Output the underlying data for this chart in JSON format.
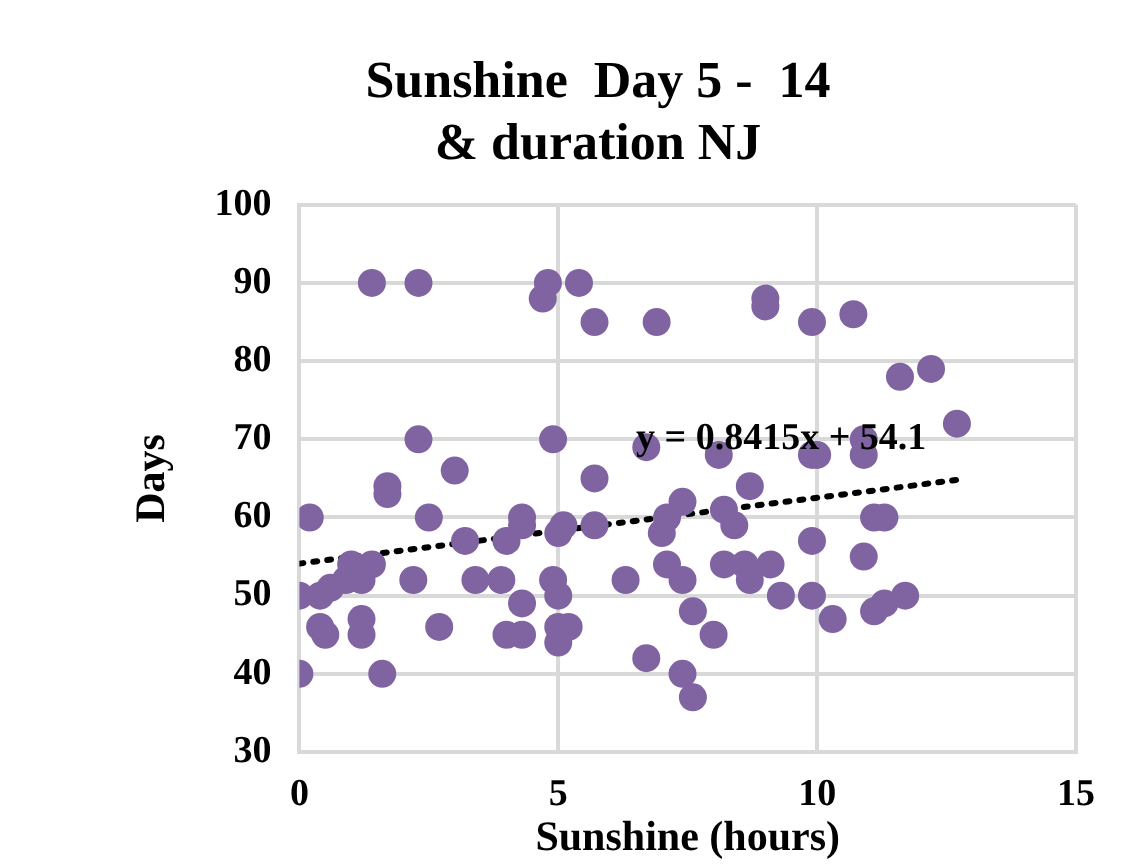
{
  "chart_data": {
    "type": "scatter",
    "title": "Sunshine  Day 5 -  14\n& duration NJ",
    "xlabel": "Sunshine (hours)",
    "ylabel": "Days",
    "xlim": [
      0,
      15
    ],
    "xticks": [
      0,
      5,
      10,
      15
    ],
    "ylim": [
      30,
      100
    ],
    "yticks": [
      30,
      40,
      50,
      60,
      70,
      80,
      90,
      100
    ],
    "grid": true,
    "marker": "circle",
    "legend": false,
    "annotations": [
      "y = 0.8415x + 54.1"
    ],
    "series": [
      {
        "color": "#8064a2",
        "x": [
          0,
          0,
          0.2,
          0.4,
          0.4,
          0.5,
          0.6,
          0.9,
          1.0,
          1.2,
          1.2,
          1.2,
          1.4,
          1.4,
          1.6,
          1.7,
          1.7,
          2.2,
          2.3,
          2.3,
          2.5,
          2.7,
          3.0,
          3.2,
          3.4,
          3.9,
          4.0,
          4.0,
          4.3,
          4.3,
          4.3,
          4.3,
          4.7,
          4.8,
          4.9,
          4.9,
          5.0,
          5.0,
          5.0,
          5.0,
          5.1,
          5.2,
          5.4,
          5.7,
          5.7,
          5.7,
          6.3,
          6.7,
          6.7,
          6.9,
          7.0,
          7.1,
          7.1,
          7.4,
          7.4,
          7.4,
          7.6,
          7.6,
          8.0,
          8.1,
          8.2,
          8.2,
          8.4,
          8.6,
          8.7,
          8.7,
          9.0,
          9.0,
          9.1,
          9.3,
          9.9,
          9.9,
          9.9,
          9.9,
          10.0,
          10.3,
          10.7,
          10.9,
          10.9,
          10.9,
          11.1,
          11.1,
          11.3,
          11.3,
          11.6,
          11.7,
          12.2,
          12.7
        ],
        "values": [
          40,
          50,
          60,
          50,
          46,
          45,
          51,
          52,
          54,
          52,
          47,
          45,
          54,
          90,
          40,
          64,
          63,
          52,
          90,
          70,
          60,
          46,
          66,
          57,
          52,
          52,
          57,
          45,
          60,
          49,
          45,
          59,
          88,
          90,
          70,
          52,
          58,
          50,
          44,
          46,
          59,
          46,
          90,
          85,
          65,
          59,
          52,
          42,
          69,
          85,
          58,
          60,
          54,
          62,
          52,
          40,
          48,
          37,
          45,
          68,
          61,
          54,
          59,
          54,
          64,
          52,
          88,
          87,
          54,
          50,
          85,
          57,
          50,
          68,
          68,
          47,
          86,
          68,
          70,
          55,
          60,
          48,
          60,
          49,
          78,
          50,
          79,
          72
        ]
      },
      {
        "type": "line",
        "color": "#000000",
        "line_style": "dotted",
        "marker": "none",
        "x": [
          0,
          12.7
        ],
        "values": [
          54.1,
          64.8
        ]
      }
    ]
  }
}
